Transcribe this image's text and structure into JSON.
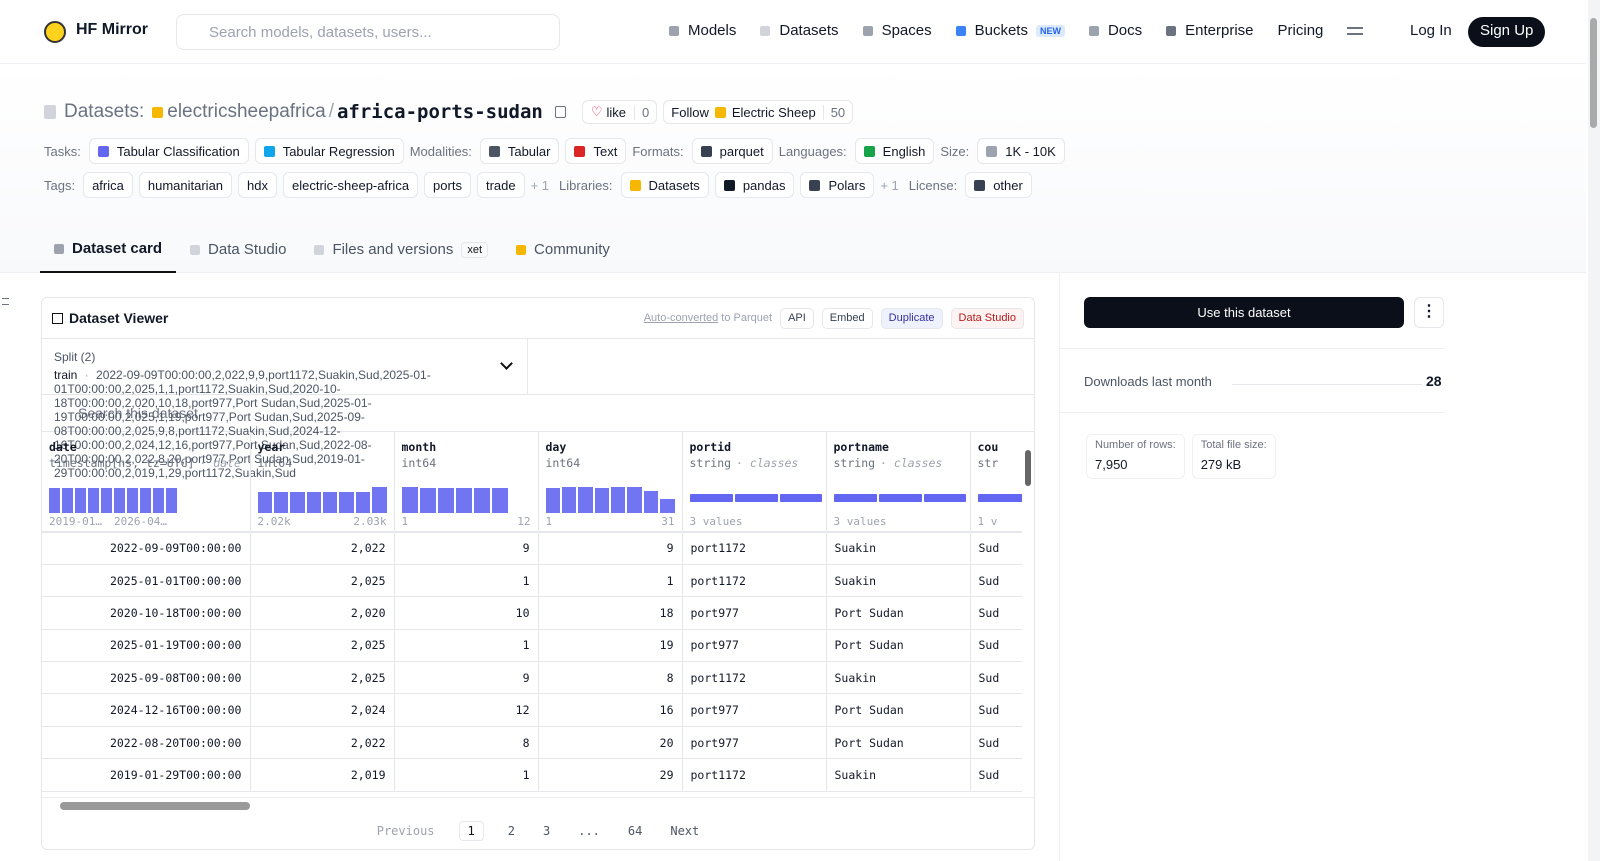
{
  "header": {
    "brand": "HF Mirror",
    "search_placeholder": "Search models, datasets, users...",
    "nav": [
      "Models",
      "Datasets",
      "Spaces",
      "Buckets",
      "Docs",
      "Enterprise",
      "Pricing"
    ],
    "new_badge": "NEW",
    "login": "Log In",
    "signup": "Sign Up"
  },
  "repo": {
    "kind": "Datasets:",
    "owner": "electricsheepafrica",
    "separator": "/",
    "name": "africa-ports-sudan",
    "like": "like",
    "likes": "0",
    "follow": "Follow",
    "org": "Electric Sheep",
    "followers": "50"
  },
  "meta_rows": [
    [
      {
        "label": "Tasks:",
        "items": [
          "Tabular Classification",
          "Tabular Regression"
        ]
      },
      {
        "label": "Modalities:",
        "items": [
          "Tabular",
          "Text"
        ]
      },
      {
        "label": "Formats:",
        "items": [
          "parquet"
        ]
      },
      {
        "label": "Languages:",
        "items": [
          "English"
        ]
      },
      {
        "label": "Size:",
        "items": [
          "1K - 10K"
        ]
      }
    ],
    [
      {
        "label": "Tags:",
        "items": [
          "africa",
          "humanitarian",
          "hdx",
          "electric-sheep-africa",
          "ports",
          "trade"
        ],
        "more": "+ 1"
      },
      {
        "label": "Libraries:",
        "items": [
          "Datasets",
          "pandas",
          "Polars"
        ],
        "more": "+ 1"
      },
      {
        "label": "License:",
        "items": [
          "other"
        ]
      }
    ]
  ],
  "tabs": [
    "Dataset card",
    "Data Studio",
    "Files and versions",
    "Community"
  ],
  "xet": "xet",
  "viewer": {
    "title": "Dataset Viewer",
    "auto": "Auto-converted",
    "to_parquet": "to Parquet",
    "buttons": [
      "API",
      "Embed",
      "Duplicate",
      "Data Studio"
    ],
    "split_label": "Split (2)",
    "split": "train",
    "dot": "·",
    "rows": [
      [
        "2022-09-09T00:00:00",
        "2,022",
        "9",
        "9",
        "port1172",
        "Suakin",
        "Sud"
      ],
      [
        "2025-01-01T00:00:00",
        "2,025",
        "1",
        "1",
        "port1172",
        "Suakin",
        "Sud"
      ],
      [
        "2020-10-18T00:00:00",
        "2,020",
        "10",
        "18",
        "port977",
        "Port Sudan",
        "Sud"
      ],
      [
        "2025-01-19T00:00:00",
        "2,025",
        "1",
        "19",
        "port977",
        "Port Sudan",
        "Sud"
      ],
      [
        "2025-09-08T00:00:00",
        "2,025",
        "9",
        "8",
        "port1172",
        "Suakin",
        "Sud"
      ],
      [
        "2024-12-16T00:00:00",
        "2,024",
        "12",
        "16",
        "port977",
        "Port Sudan",
        "Sud"
      ],
      [
        "2022-08-20T00:00:00",
        "2,022",
        "8",
        "20",
        "port977",
        "Port Sudan",
        "Sud"
      ],
      [
        "2019-01-29T00:00:00",
        "2,019",
        "1",
        "29",
        "port1172",
        "Suakin",
        "Sud"
      ]
    ],
    "search_placeholder": "Search this dataset",
    "columns": [
      {
        "name": "date",
        "dtype": "timestamp[ns, tz=UTC]",
        "kind": "· date",
        "hist": [
          95,
          95,
          95,
          95,
          95,
          95,
          95,
          95,
          95,
          95
        ],
        "min": "2019-01…",
        "max": "2026-04…"
      },
      {
        "name": "year",
        "dtype": "int64",
        "hist": [
          80,
          80,
          80,
          80,
          80,
          80,
          80,
          100
        ],
        "min": "2.02k",
        "max": "2.03k"
      },
      {
        "name": "month",
        "dtype": "int64",
        "hist": [
          100,
          95,
          95,
          95,
          95,
          95
        ],
        "min": "1",
        "max": "12"
      },
      {
        "name": "day",
        "dtype": "int64",
        "hist": [
          95,
          100,
          100,
          95,
          100,
          100,
          85,
          55
        ],
        "min": "1",
        "max": "31"
      },
      {
        "name": "portid",
        "dtype": "string",
        "kind": "· classes",
        "classes": [
          34,
          33,
          33
        ],
        "range": "3 values"
      },
      {
        "name": "portname",
        "dtype": "string",
        "kind": "· classes",
        "classes": [
          34,
          33,
          33
        ],
        "range": "3 values"
      },
      {
        "name": "cou",
        "dtype": "str",
        "classes": [
          100
        ],
        "range": "1 v"
      }
    ],
    "pagination": [
      "Previous",
      "1",
      "2",
      "3",
      "...",
      "64",
      "Next"
    ]
  },
  "sidebar": {
    "use": "Use this dataset",
    "downloads_label": "Downloads last month",
    "downloads": "28",
    "stats": [
      {
        "label": "Number of rows:",
        "value": "7,950"
      },
      {
        "label": "Total file size:",
        "value": "279 kB"
      }
    ]
  }
}
